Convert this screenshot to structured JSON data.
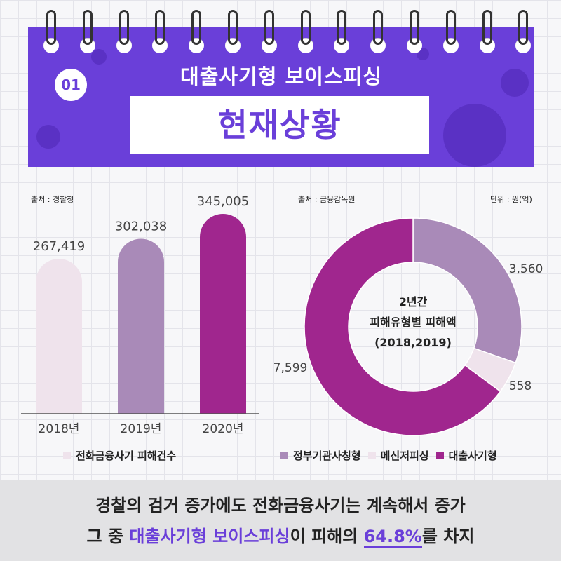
{
  "header": {
    "badge": "01",
    "subtitle": "대출사기형 보이스피싱",
    "title": "현재상황",
    "color_banner": "#6a3fd9"
  },
  "left_source": "출처 : 경찰청",
  "right_source": "출처 : 금융감독원",
  "right_unit": "단위 : 원(억)",
  "donut_center": [
    "2년간",
    "피해유형별 피해액",
    "(2018,2019)"
  ],
  "chart_data": [
    {
      "type": "bar",
      "categories": [
        "2018년",
        "2019년",
        "2020년"
      ],
      "values": [
        267419,
        302038,
        345005
      ],
      "value_labels": [
        "267,419",
        "302,038",
        "345,005"
      ],
      "colors": [
        "#efe3ec",
        "#a98ab8",
        "#a0268e"
      ],
      "legend": [
        "전화금융사기 피해건수"
      ],
      "legend_color": "#efe3ec",
      "source": "출처 : 경찰청"
    },
    {
      "type": "pie",
      "donut": true,
      "labels": [
        "정부기관사칭형",
        "메신저피싱",
        "대출사기형"
      ],
      "values": [
        3560,
        558,
        7599
      ],
      "value_labels": [
        "3,560",
        "558",
        "7,599"
      ],
      "colors": [
        "#a98ab8",
        "#efe3ec",
        "#a0268e"
      ],
      "unit": "단위 : 원(억)",
      "source": "출처 : 금융감독원"
    }
  ],
  "bottom": {
    "line1": "경찰의 검거 증가에도 전화금융사기는 계속해서 증가",
    "line2_prefix": "그 중 ",
    "line2_highlight": "대출사기형 보이스피싱",
    "line2_mid": "이 피해의 ",
    "line2_pct": "64.8%",
    "line2_suffix": "를 차지"
  }
}
